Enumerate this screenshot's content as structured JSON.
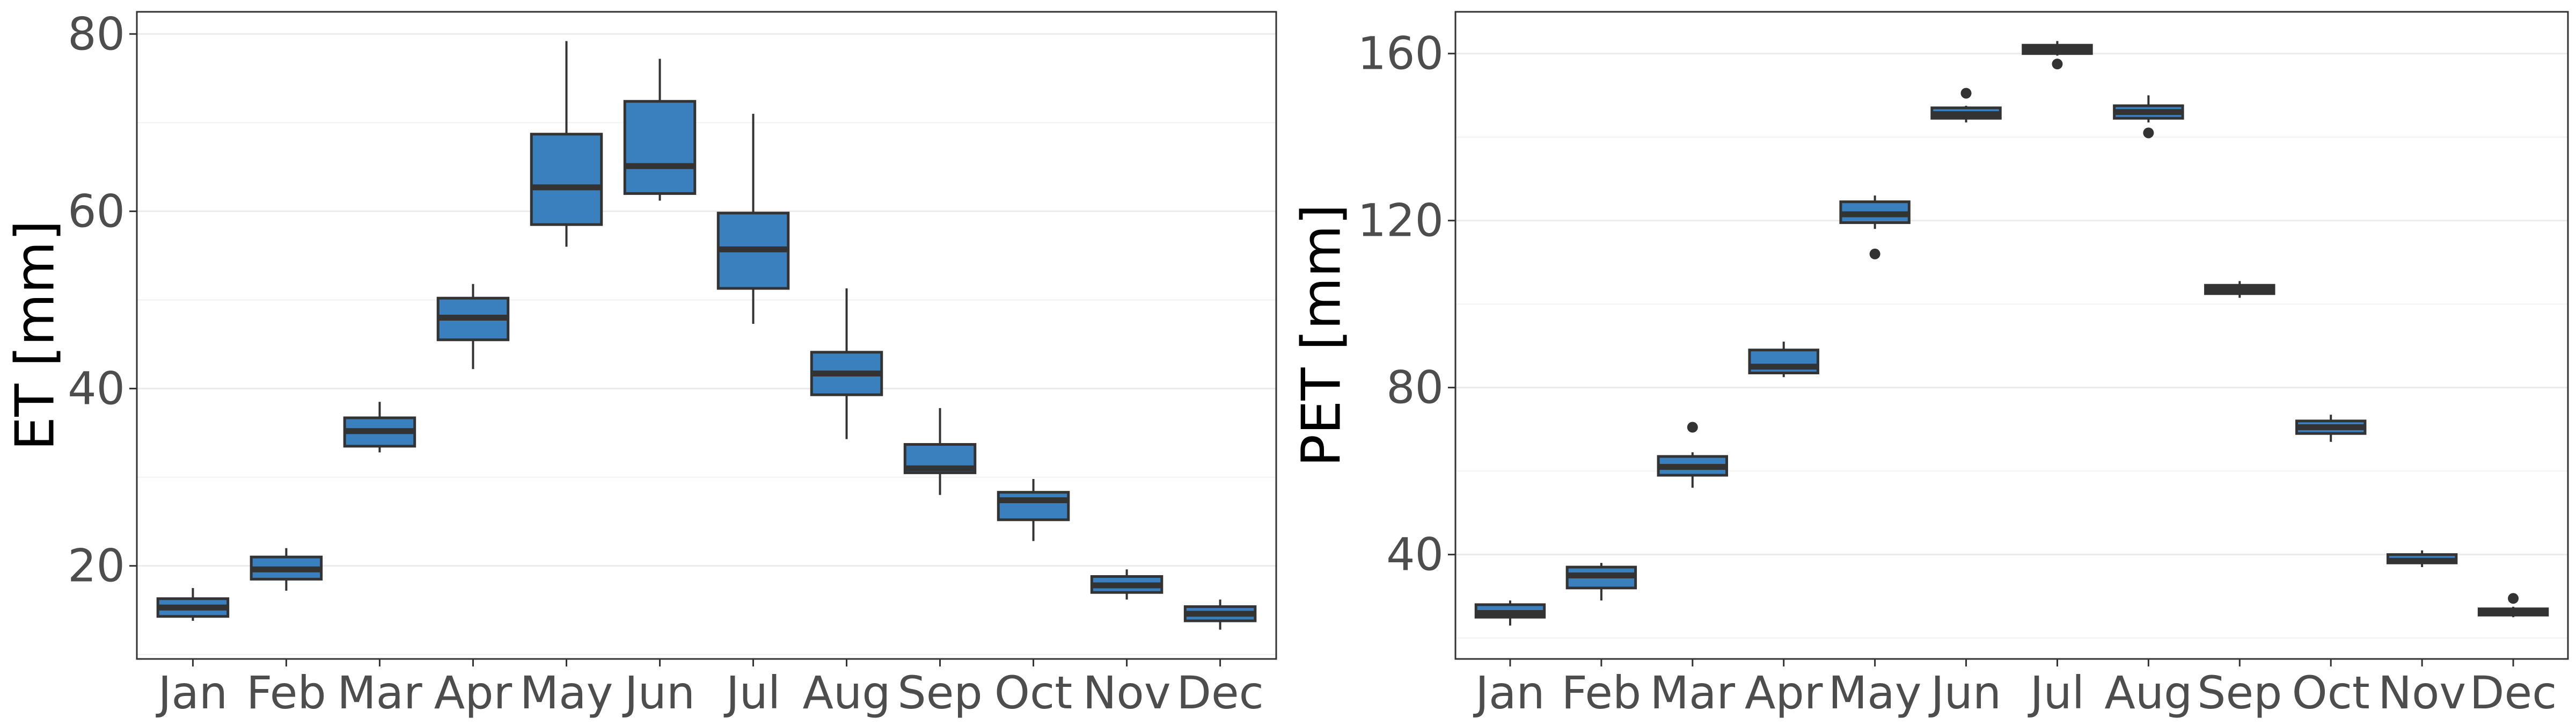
{
  "chart_data": [
    {
      "type": "boxplot",
      "xlabel": "",
      "ylabel": "ET [mm]",
      "ylim": [
        9.5,
        82.5
      ],
      "yticks": [
        20,
        40,
        60,
        80
      ],
      "yminor": [
        10,
        30,
        50,
        70
      ],
      "grid": true,
      "box_color": "#3A7FBE",
      "categories": [
        "Jan",
        "Feb",
        "Mar",
        "Apr",
        "May",
        "Jun",
        "Jul",
        "Aug",
        "Sep",
        "Oct",
        "Nov",
        "Dec"
      ],
      "boxes": [
        {
          "min": 13.8,
          "q1": 14.3,
          "median": 15.3,
          "q3": 16.3,
          "max": 17.5,
          "outliers": []
        },
        {
          "min": 17.2,
          "q1": 18.5,
          "median": 19.6,
          "q3": 21.0,
          "max": 22.0,
          "outliers": []
        },
        {
          "min": 32.8,
          "q1": 33.5,
          "median": 35.2,
          "q3": 36.7,
          "max": 38.5,
          "outliers": []
        },
        {
          "min": 42.2,
          "q1": 45.5,
          "median": 48.0,
          "q3": 50.2,
          "max": 51.8,
          "outliers": []
        },
        {
          "min": 56.0,
          "q1": 58.5,
          "median": 62.7,
          "q3": 68.7,
          "max": 79.2,
          "outliers": []
        },
        {
          "min": 61.2,
          "q1": 62.0,
          "median": 65.1,
          "q3": 72.4,
          "max": 77.2,
          "outliers": []
        },
        {
          "min": 47.3,
          "q1": 51.3,
          "median": 55.7,
          "q3": 59.8,
          "max": 71.0,
          "outliers": []
        },
        {
          "min": 34.3,
          "q1": 39.3,
          "median": 41.7,
          "q3": 44.1,
          "max": 51.3,
          "outliers": []
        },
        {
          "min": 28.0,
          "q1": 30.5,
          "median": 31.0,
          "q3": 33.7,
          "max": 37.8,
          "outliers": []
        },
        {
          "min": 22.8,
          "q1": 25.2,
          "median": 27.4,
          "q3": 28.3,
          "max": 29.8,
          "outliers": []
        },
        {
          "min": 16.2,
          "q1": 17.0,
          "median": 17.8,
          "q3": 18.8,
          "max": 19.6,
          "outliers": []
        },
        {
          "min": 12.8,
          "q1": 13.8,
          "median": 14.6,
          "q3": 15.4,
          "max": 16.2,
          "outliers": []
        }
      ]
    },
    {
      "type": "boxplot",
      "xlabel": "",
      "ylabel": "PET [mm]",
      "ylim": [
        15,
        170
      ],
      "yticks": [
        40,
        80,
        120,
        160
      ],
      "yminor": [
        20,
        60,
        100,
        140
      ],
      "grid": true,
      "box_color": "#3A7FBE",
      "categories": [
        "Jan",
        "Feb",
        "Mar",
        "Apr",
        "May",
        "Jun",
        "Jul",
        "Aug",
        "Sep",
        "Oct",
        "Nov",
        "Dec"
      ],
      "boxes": [
        {
          "min": 23.0,
          "q1": 25.0,
          "median": 26.0,
          "q3": 28.0,
          "max": 29.0,
          "outliers": []
        },
        {
          "min": 29.0,
          "q1": 32.0,
          "median": 35.0,
          "q3": 37.0,
          "max": 38.0,
          "outliers": []
        },
        {
          "min": 56.0,
          "q1": 59.0,
          "median": 61.0,
          "q3": 63.5,
          "max": 64.5,
          "outliers": [
            70.5
          ]
        },
        {
          "min": 82.5,
          "q1": 83.5,
          "median": 85.0,
          "q3": 89.0,
          "max": 91.0,
          "outliers": []
        },
        {
          "min": 118.0,
          "q1": 119.5,
          "median": 121.5,
          "q3": 124.5,
          "max": 126.0,
          "outliers": [
            112.0
          ]
        },
        {
          "min": 143.5,
          "q1": 144.5,
          "median": 145.5,
          "q3": 147.0,
          "max": 147.5,
          "outliers": [
            150.5
          ]
        },
        {
          "min": 159.5,
          "q1": 160.0,
          "median": 161.0,
          "q3": 162.0,
          "max": 163.0,
          "outliers": [
            157.5
          ]
        },
        {
          "min": 143.5,
          "q1": 144.5,
          "median": 146.0,
          "q3": 147.5,
          "max": 150.0,
          "outliers": [
            141.0
          ]
        },
        {
          "min": 101.5,
          "q1": 102.5,
          "median": 103.5,
          "q3": 104.5,
          "max": 105.5,
          "outliers": []
        },
        {
          "min": 67.0,
          "q1": 69.0,
          "median": 70.5,
          "q3": 72.0,
          "max": 73.5,
          "outliers": []
        },
        {
          "min": 37.0,
          "q1": 38.0,
          "median": 38.5,
          "q3": 40.0,
          "max": 41.0,
          "outliers": []
        },
        {
          "min": 25.0,
          "q1": 25.5,
          "median": 26.0,
          "q3": 27.0,
          "max": 27.5,
          "outliers": [
            29.5
          ]
        }
      ]
    }
  ]
}
